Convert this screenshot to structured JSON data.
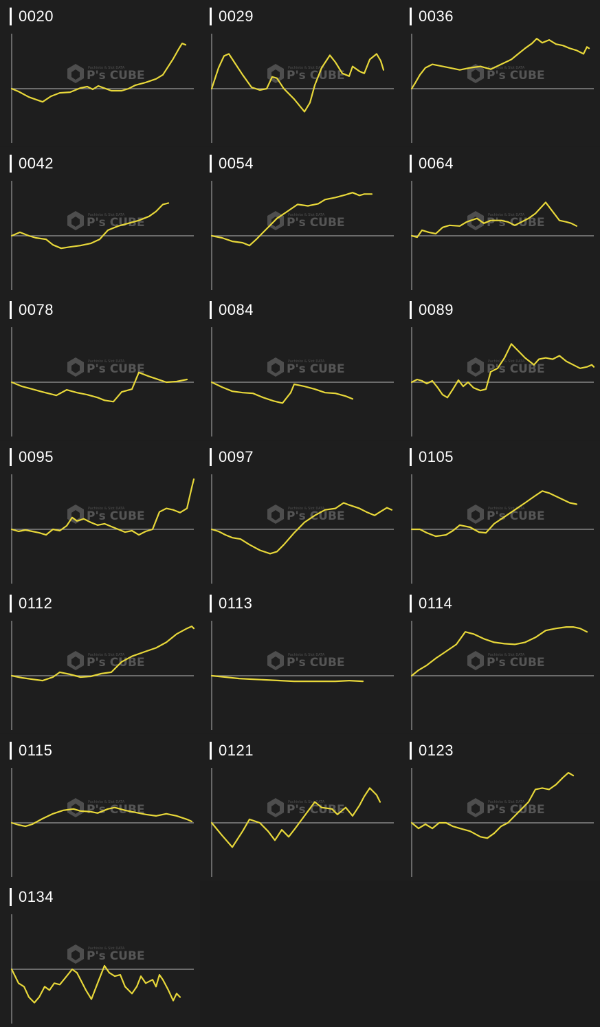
{
  "watermark": {
    "brand": "P's CUBE",
    "tagline": "Pachinko & Slot DATA",
    "logo_icon": "cube-hexagon-icon"
  },
  "colors": {
    "background": "#1e1e1e",
    "line": "#e8d83a",
    "axis": "#9a9a9a",
    "title": "#ffffff"
  },
  "chart_data": [
    {
      "type": "line",
      "title": "0020",
      "ylim": [
        -80,
        80
      ],
      "xlim": [
        0,
        265
      ],
      "x": [
        0,
        10,
        25,
        45,
        57,
        70,
        85,
        100,
        110,
        118,
        126,
        145,
        160,
        170,
        180,
        195,
        210,
        220,
        235,
        243,
        248,
        253
      ],
      "y": [
        0,
        -4,
        -12,
        -19,
        -11,
        -6,
        -5,
        1,
        3,
        -1,
        4,
        -3,
        -3,
        0,
        5,
        9,
        14,
        20,
        43,
        57,
        65,
        63
      ]
    },
    {
      "type": "line",
      "title": "0029",
      "ylim": [
        -80,
        80
      ],
      "xlim": [
        0,
        265
      ],
      "x": [
        0,
        10,
        18,
        25,
        35,
        45,
        58,
        70,
        80,
        88,
        95,
        105,
        120,
        135,
        143,
        150,
        160,
        172,
        180,
        190,
        200,
        205,
        215,
        222,
        230,
        240,
        246,
        250
      ],
      "y": [
        0,
        30,
        47,
        50,
        35,
        20,
        2,
        -2,
        0,
        17,
        15,
        0,
        -15,
        -33,
        -20,
        5,
        30,
        48,
        38,
        22,
        18,
        32,
        25,
        22,
        42,
        50,
        40,
        27
      ]
    },
    {
      "type": "line",
      "title": "0036",
      "ylim": [
        -80,
        80
      ],
      "xlim": [
        0,
        265
      ],
      "x": [
        0,
        5,
        12,
        20,
        30,
        40,
        55,
        70,
        85,
        100,
        115,
        130,
        145,
        155,
        165,
        175,
        182,
        190,
        200,
        210,
        220,
        230,
        240,
        250,
        255,
        258
      ],
      "y": [
        0,
        8,
        20,
        30,
        35,
        33,
        30,
        27,
        30,
        32,
        28,
        35,
        42,
        50,
        58,
        65,
        72,
        66,
        70,
        64,
        62,
        58,
        55,
        50,
        60,
        58
      ]
    },
    {
      "type": "line",
      "title": "0042",
      "ylim": [
        -80,
        80
      ],
      "xlim": [
        0,
        265
      ],
      "x": [
        0,
        12,
        25,
        35,
        50,
        60,
        72,
        85,
        100,
        115,
        128,
        140,
        155,
        170,
        185,
        200,
        210,
        220,
        228
      ],
      "y": [
        0,
        5,
        0,
        -3,
        -5,
        -13,
        -18,
        -16,
        -14,
        -11,
        -5,
        8,
        14,
        18,
        22,
        28,
        35,
        45,
        47
      ]
    },
    {
      "type": "line",
      "title": "0054",
      "ylim": [
        -80,
        80
      ],
      "xlim": [
        0,
        265
      ],
      "x": [
        0,
        15,
        30,
        45,
        55,
        65,
        80,
        95,
        110,
        125,
        140,
        155,
        165,
        180,
        195,
        205,
        215,
        222,
        233
      ],
      "y": [
        0,
        -3,
        -8,
        -10,
        -14,
        -5,
        10,
        25,
        35,
        45,
        43,
        46,
        52,
        55,
        59,
        62,
        58,
        60,
        60
      ]
    },
    {
      "type": "line",
      "title": "0064",
      "ylim": [
        -80,
        80
      ],
      "xlim": [
        0,
        265
      ],
      "x": [
        0,
        8,
        15,
        25,
        35,
        45,
        55,
        70,
        80,
        95,
        105,
        115,
        130,
        140,
        150,
        160,
        170,
        180,
        195,
        205,
        215,
        225,
        232,
        240
      ],
      "y": [
        0,
        -2,
        8,
        5,
        3,
        12,
        15,
        14,
        20,
        25,
        18,
        22,
        22,
        20,
        15,
        20,
        25,
        32,
        48,
        35,
        22,
        20,
        18,
        14
      ]
    },
    {
      "type": "line",
      "title": "0078",
      "ylim": [
        -80,
        80
      ],
      "xlim": [
        0,
        265
      ],
      "x": [
        0,
        15,
        30,
        45,
        65,
        80,
        95,
        110,
        125,
        135,
        148,
        160,
        175,
        185,
        198,
        210,
        225,
        240,
        255
      ],
      "y": [
        0,
        -6,
        -10,
        -14,
        -19,
        -11,
        -15,
        -18,
        -22,
        -26,
        -28,
        -14,
        -10,
        14,
        9,
        5,
        0,
        1,
        4
      ]
    },
    {
      "type": "line",
      "title": "0084",
      "ylim": [
        -80,
        80
      ],
      "xlim": [
        0,
        265
      ],
      "x": [
        0,
        15,
        30,
        45,
        60,
        75,
        90,
        103,
        115,
        120,
        135,
        150,
        165,
        180,
        195,
        205
      ],
      "y": [
        0,
        -7,
        -13,
        -15,
        -16,
        -22,
        -27,
        -30,
        -15,
        -3,
        -6,
        -10,
        -15,
        -16,
        -20,
        -24
      ]
    },
    {
      "type": "line",
      "title": "0089",
      "ylim": [
        -80,
        80
      ],
      "xlim": [
        0,
        265
      ],
      "x": [
        0,
        8,
        15,
        22,
        30,
        38,
        45,
        52,
        60,
        68,
        75,
        82,
        90,
        100,
        108,
        115,
        125,
        135,
        145,
        155,
        165,
        178,
        185,
        195,
        205,
        215,
        225,
        235,
        245,
        255,
        262,
        265
      ],
      "y": [
        0,
        4,
        2,
        -2,
        2,
        -8,
        -18,
        -22,
        -10,
        3,
        -6,
        0,
        -8,
        -12,
        -10,
        15,
        20,
        35,
        55,
        45,
        35,
        25,
        33,
        35,
        33,
        38,
        30,
        25,
        20,
        22,
        25,
        22
      ]
    },
    {
      "type": "line",
      "title": "0095",
      "ylim": [
        -80,
        80
      ],
      "xlim": [
        0,
        265
      ],
      "x": [
        0,
        10,
        20,
        30,
        40,
        50,
        60,
        70,
        80,
        88,
        95,
        105,
        115,
        125,
        135,
        145,
        155,
        165,
        175,
        185,
        195,
        205,
        215,
        225,
        235,
        245,
        255,
        262,
        265
      ],
      "y": [
        0,
        -3,
        -1,
        -3,
        -5,
        -8,
        0,
        -2,
        5,
        17,
        12,
        15,
        10,
        6,
        8,
        4,
        0,
        -4,
        -2,
        -8,
        -3,
        0,
        25,
        30,
        28,
        24,
        30,
        60,
        72
      ]
    },
    {
      "type": "line",
      "title": "0097",
      "ylim": [
        -80,
        80
      ],
      "xlim": [
        0,
        265
      ],
      "x": [
        0,
        10,
        20,
        30,
        42,
        55,
        70,
        85,
        95,
        105,
        120,
        135,
        150,
        165,
        180,
        192,
        200,
        215,
        225,
        237,
        245,
        255,
        262
      ],
      "y": [
        0,
        -3,
        -8,
        -12,
        -14,
        -22,
        -30,
        -35,
        -32,
        -22,
        -5,
        10,
        20,
        28,
        30,
        38,
        35,
        30,
        25,
        20,
        25,
        31,
        28
      ]
    },
    {
      "type": "line",
      "title": "0105",
      "ylim": [
        -80,
        80
      ],
      "xlim": [
        0,
        265
      ],
      "x": [
        0,
        12,
        22,
        35,
        50,
        60,
        70,
        85,
        98,
        108,
        120,
        135,
        150,
        165,
        178,
        190,
        200,
        215,
        230,
        240
      ],
      "y": [
        0,
        0,
        -5,
        -10,
        -8,
        -2,
        6,
        3,
        -4,
        -5,
        8,
        18,
        28,
        38,
        47,
        55,
        52,
        45,
        38,
        36
      ]
    },
    {
      "type": "line",
      "title": "0112",
      "ylim": [
        -80,
        80
      ],
      "xlim": [
        0,
        265
      ],
      "x": [
        0,
        15,
        30,
        45,
        60,
        70,
        85,
        100,
        115,
        130,
        145,
        160,
        175,
        195,
        210,
        225,
        240,
        255,
        262,
        265
      ],
      "y": [
        0,
        -3,
        -5,
        -7,
        -2,
        5,
        2,
        -2,
        -1,
        3,
        5,
        20,
        28,
        35,
        40,
        48,
        60,
        68,
        71,
        68
      ]
    },
    {
      "type": "line",
      "title": "0113",
      "ylim": [
        -80,
        80
      ],
      "xlim": [
        0,
        265
      ],
      "x": [
        0,
        20,
        40,
        60,
        80,
        100,
        120,
        140,
        160,
        180,
        200,
        220
      ],
      "y": [
        0,
        -2,
        -4,
        -5,
        -6,
        -7,
        -8,
        -8,
        -8,
        -8,
        -7,
        -8
      ]
    },
    {
      "type": "line",
      "title": "0114",
      "ylim": [
        -80,
        80
      ],
      "xlim": [
        0,
        265
      ],
      "x": [
        0,
        10,
        22,
        35,
        50,
        65,
        78,
        90,
        105,
        120,
        135,
        150,
        165,
        180,
        195,
        210,
        225,
        235,
        245,
        255
      ],
      "y": [
        0,
        8,
        15,
        25,
        35,
        45,
        63,
        60,
        53,
        48,
        46,
        45,
        48,
        55,
        65,
        68,
        70,
        70,
        68,
        63
      ]
    },
    {
      "type": "line",
      "title": "0115",
      "ylim": [
        -80,
        80
      ],
      "xlim": [
        0,
        265
      ],
      "x": [
        0,
        10,
        20,
        30,
        45,
        60,
        75,
        90,
        100,
        115,
        125,
        140,
        150,
        165,
        180,
        195,
        210,
        225,
        240,
        255,
        262
      ],
      "y": [
        0,
        -3,
        -5,
        -2,
        6,
        13,
        18,
        20,
        17,
        16,
        14,
        20,
        22,
        18,
        15,
        12,
        10,
        13,
        10,
        5,
        2
      ]
    },
    {
      "type": "line",
      "title": "0121",
      "ylim": [
        -80,
        80
      ],
      "xlim": [
        0,
        265
      ],
      "x": [
        0,
        15,
        30,
        45,
        55,
        70,
        82,
        92,
        102,
        112,
        120,
        135,
        150,
        160,
        175,
        183,
        195,
        205,
        215,
        222,
        230,
        240,
        245
      ],
      "y": [
        0,
        -18,
        -35,
        -12,
        5,
        0,
        -12,
        -25,
        -10,
        -20,
        -10,
        10,
        30,
        22,
        20,
        12,
        22,
        10,
        25,
        38,
        50,
        40,
        30
      ]
    },
    {
      "type": "line",
      "title": "0123",
      "ylim": [
        -80,
        80
      ],
      "xlim": [
        0,
        265
      ],
      "x": [
        0,
        10,
        20,
        30,
        40,
        50,
        60,
        70,
        85,
        100,
        110,
        120,
        130,
        140,
        150,
        160,
        170,
        180,
        190,
        200,
        210,
        220,
        228,
        235
      ],
      "y": [
        0,
        -8,
        -2,
        -8,
        0,
        0,
        -5,
        -8,
        -12,
        -20,
        -22,
        -15,
        -5,
        0,
        10,
        20,
        30,
        48,
        50,
        48,
        55,
        65,
        72,
        68
      ]
    },
    {
      "type": "line",
      "title": "0134",
      "ylim": [
        -80,
        80
      ],
      "xlim": [
        0,
        265
      ],
      "x": [
        0,
        10,
        18,
        25,
        33,
        40,
        48,
        55,
        62,
        70,
        80,
        88,
        95,
        108,
        116,
        125,
        135,
        142,
        150,
        158,
        165,
        175,
        182,
        188,
        195,
        205,
        210,
        215,
        220,
        228,
        235,
        240,
        245
      ],
      "y": [
        0,
        -20,
        -25,
        -40,
        -48,
        -40,
        -25,
        -30,
        -20,
        -22,
        -10,
        0,
        -5,
        -30,
        -43,
        -20,
        5,
        -5,
        -10,
        -8,
        -25,
        -35,
        -25,
        -10,
        -20,
        -15,
        -25,
        -8,
        -15,
        -30,
        -45,
        -35,
        -40
      ]
    }
  ]
}
